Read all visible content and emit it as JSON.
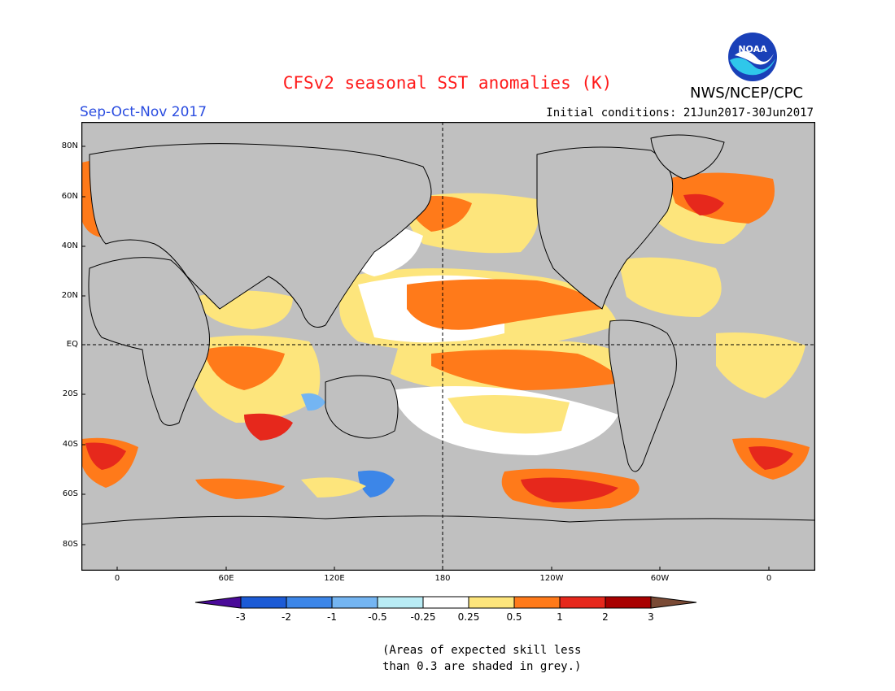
{
  "title": "CFSv2 seasonal SST anomalies (K)",
  "season": "Sep-Oct-Nov 2017",
  "agency": "NWS/NCEP/CPC",
  "logo_text": "NOAA",
  "initial_conditions": "Initial conditions: 21Jun2017-30Jun2017",
  "map": {
    "lat_ticks": [
      "80N",
      "60N",
      "40N",
      "20N",
      "EQ",
      "20S",
      "40S",
      "60S",
      "80S"
    ],
    "lon_ticks": [
      "0",
      "60E",
      "120E",
      "180",
      "120W",
      "60W",
      "0"
    ],
    "colors": {
      "ocean_grey": "#c0c0c0",
      "land": "#c0c0c0"
    }
  },
  "legend": {
    "labels": [
      "-3",
      "-2",
      "-1",
      "-0.5",
      "-0.25",
      "0.25",
      "0.5",
      "1",
      "2",
      "3"
    ],
    "colors": [
      "#4a0a99",
      "#1c5bd6",
      "#3c86e8",
      "#74b5f2",
      "#b9ecf5",
      "#ffffff",
      "#fde57c",
      "#ff7a1a",
      "#e6281c",
      "#a80000",
      "#7a4a35"
    ]
  },
  "note_line1": "(Areas of expected skill less",
  "note_line2": "than 0.3 are shaded in grey.)"
}
